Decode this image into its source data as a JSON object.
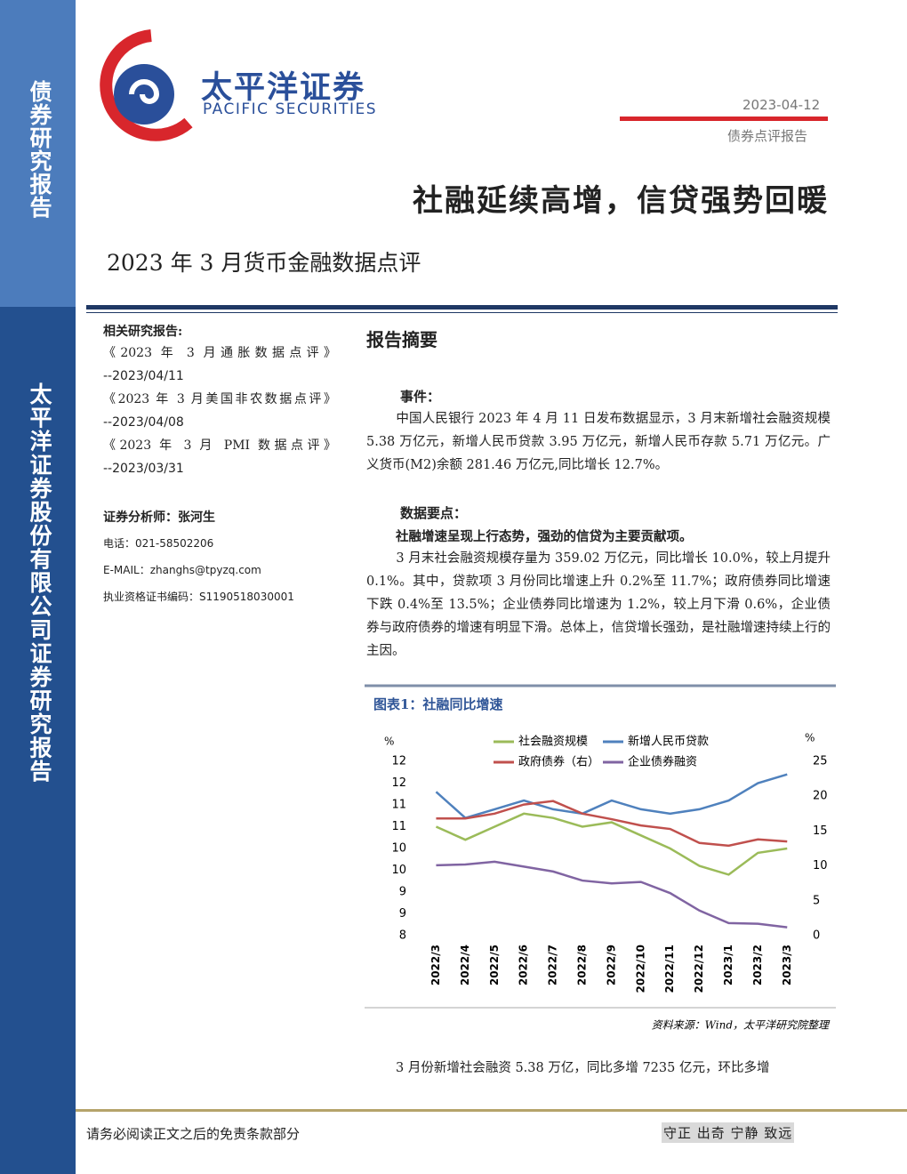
{
  "sidebar": {
    "top": "债券研究报告",
    "bottom": "太平洋证券股份有限公司证券研究报告"
  },
  "header": {
    "logo_cn": "太平洋证券",
    "logo_en": "PACIFIC SECURITIES",
    "date": "2023-04-12",
    "report_type": "债券点评报告",
    "title": "社融延续高增，信贷强势回暖",
    "subtitle": "2023 年 3 月货币金融数据点评"
  },
  "related": {
    "heading": "相关研究报告:",
    "items": [
      {
        "title": "《2023 年 3 月通胀数据点评》",
        "date": "--2023/04/11"
      },
      {
        "title": "《2023 年 3 月美国非农数据点评》",
        "date": "--2023/04/08"
      },
      {
        "title": "《2023 年 3 月 PMI 数据点评》",
        "date": "--2023/03/31"
      }
    ]
  },
  "analyst": {
    "heading": "证券分析师：张河生",
    "phone": "电话：021-58502206",
    "email": "E-MAIL：zhanghs@tpyzq.com",
    "license": "执业资格证书编码：S1190518030001"
  },
  "summary": {
    "heading": "报告摘要",
    "event_heading": "事件：",
    "event_text": "中国人民银行 2023 年 4 月 11 日发布数据显示，3 月末新增社会融资规模 5.38 万亿元，新增人民币贷款 3.95 万亿元，新增人民币存款 5.71 万亿元。广义货币(M2)余额 281.46 万亿元,同比增长 12.7%。",
    "points_heading": "数据要点：",
    "point_bold": "社融增速呈现上行态势，强劲的信贷为主要贡献项。",
    "point_text": "3 月末社会融资规模存量为 359.02 万亿元，同比增长 10.0%，较上月提升 0.1%。其中，贷款项 3 月份同比增速上升 0.2%至 11.7%；政府债券同比增速下跌 0.4%至 13.5%；企业债券同比增速为 1.2%，较上月下滑 0.6%，企业债券与政府债券的增速有明显下滑。总体上，信贷增长强劲，是社融增速持续上行的主因。"
  },
  "chart_data": {
    "type": "line",
    "title": "图表1：社融同比增速",
    "source": "资料来源：Wind，太平洋研究院整理",
    "y_unit": "%",
    "y2_unit": "%",
    "categories": [
      "2022/3",
      "2022/4",
      "2022/5",
      "2022/6",
      "2022/7",
      "2022/8",
      "2022/9",
      "2022/10",
      "2022/11",
      "2022/12",
      "2023/1",
      "2023/2",
      "2023/3"
    ],
    "ylim": [
      8,
      12
    ],
    "yticks": [
      8,
      {
        "value": 8.5,
        "label": "9"
      },
      9,
      {
        "value": 9.5,
        "label": "10"
      },
      10,
      {
        "value": 10.5,
        "label": "11"
      },
      11,
      {
        "value": 11.5,
        "label": "12"
      },
      12
    ],
    "y2lim": [
      0,
      25
    ],
    "y2ticks": [
      0,
      5,
      10,
      15,
      20,
      25
    ],
    "series": [
      {
        "name": "社会融资规模",
        "color": "#9bbb59",
        "values": [
          10.5,
          10.2,
          10.5,
          10.8,
          10.7,
          10.5,
          10.6,
          10.3,
          10.0,
          9.6,
          9.4,
          9.9,
          10.0
        ]
      },
      {
        "name": "新增人民币贷款",
        "color": "#4f81bd",
        "values": [
          11.3,
          10.7,
          10.9,
          11.1,
          10.9,
          10.8,
          11.1,
          10.9,
          10.8,
          10.9,
          11.1,
          11.5,
          11.7
        ]
      },
      {
        "name": "政府债券（右）",
        "color": "#c0504d",
        "axis": "y2",
        "values": [
          16.8,
          16.8,
          17.5,
          18.8,
          19.3,
          17.5,
          16.7,
          15.8,
          15.3,
          13.3,
          12.9,
          13.8,
          13.5
        ]
      },
      {
        "name": "企业债券融资",
        "color": "#8064a2",
        "axis": "y2",
        "values": [
          10.1,
          10.2,
          10.6,
          9.9,
          9.2,
          7.9,
          7.5,
          7.7,
          6.1,
          3.6,
          1.8,
          1.7,
          1.2
        ]
      }
    ]
  },
  "after_text": "3 月份新增社会融资 5.38 万亿，同比多增 7235 亿元，环比多增",
  "footer": {
    "disclaimer": "请务必阅读正文之后的免责条款部分",
    "motto": "守正 出奇 宁静 致远"
  }
}
